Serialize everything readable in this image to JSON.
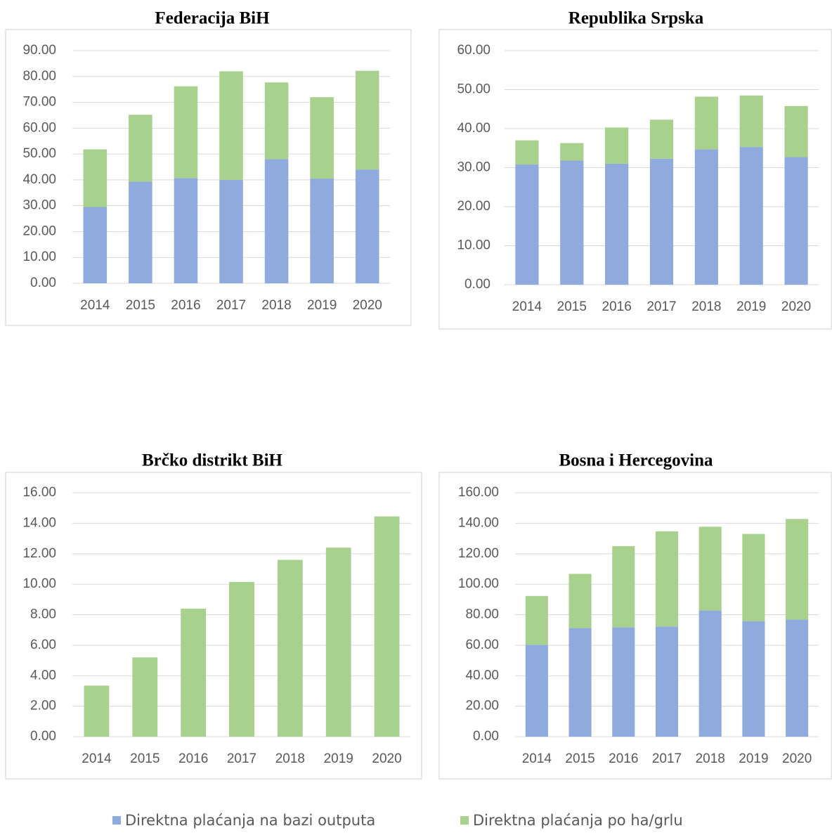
{
  "chart_data": [
    {
      "type": "bar",
      "stacked": true,
      "title": "Federacija BiH",
      "categories": [
        "2014",
        "2015",
        "2016",
        "2017",
        "2018",
        "2019",
        "2020"
      ],
      "series": [
        {
          "color": "#8faadc",
          "values": [
            29.5,
            39.3,
            40.7,
            40.0,
            48.0,
            40.5,
            44.0
          ]
        },
        {
          "color": "#a9d18e",
          "values": [
            22.3,
            25.9,
            35.5,
            42.0,
            29.7,
            31.5,
            38.2
          ]
        }
      ],
      "ylim": [
        0,
        90
      ],
      "yticks": [
        {
          "value": 0,
          "label": "0.00"
        },
        {
          "value": 10,
          "label": "10.00"
        },
        {
          "value": 20,
          "label": "20.00"
        },
        {
          "value": 30,
          "label": "30.00"
        },
        {
          "value": 40,
          "label": "40.00"
        },
        {
          "value": 50,
          "label": "50.00"
        },
        {
          "value": 60,
          "label": "60.00"
        },
        {
          "value": 70,
          "label": "70.00"
        },
        {
          "value": 80,
          "label": "80.00"
        },
        {
          "value": 90,
          "label": "90.00"
        }
      ],
      "grid": true
    },
    {
      "type": "bar",
      "stacked": true,
      "title": "Republika Srpska",
      "categories": [
        "2014",
        "2015",
        "2016",
        "2017",
        "2018",
        "2019",
        "2020"
      ],
      "series": [
        {
          "color": "#8faadc",
          "values": [
            30.8,
            31.8,
            31.0,
            32.3,
            34.7,
            35.3,
            32.7
          ]
        },
        {
          "color": "#a9d18e",
          "values": [
            6.2,
            4.5,
            9.3,
            10.0,
            13.5,
            13.2,
            13.1
          ]
        }
      ],
      "ylim": [
        0,
        60
      ],
      "yticks": [
        {
          "value": 0,
          "label": "0.00"
        },
        {
          "value": 10,
          "label": "10.00"
        },
        {
          "value": 20,
          "label": "20.00"
        },
        {
          "value": 30,
          "label": "30.00"
        },
        {
          "value": 40,
          "label": "40.00"
        },
        {
          "value": 50,
          "label": "50.00"
        },
        {
          "value": 60,
          "label": "60.00"
        }
      ],
      "grid": true
    },
    {
      "type": "bar",
      "stacked": true,
      "title": "Brčko distrikt BiH",
      "categories": [
        "2014",
        "2015",
        "2016",
        "2017",
        "2018",
        "2019",
        "2020"
      ],
      "series": [
        {
          "color": "#a9d18e",
          "values": [
            3.35,
            5.2,
            8.4,
            10.15,
            11.6,
            12.4,
            14.45
          ]
        }
      ],
      "ylim": [
        0,
        16
      ],
      "yticks": [
        {
          "value": 0,
          "label": "0.00"
        },
        {
          "value": 2,
          "label": "2.00"
        },
        {
          "value": 4,
          "label": "4.00"
        },
        {
          "value": 6,
          "label": "6.00"
        },
        {
          "value": 8,
          "label": "8.00"
        },
        {
          "value": 10,
          "label": "10.00"
        },
        {
          "value": 12,
          "label": "12.00"
        },
        {
          "value": 14,
          "label": "14.00"
        },
        {
          "value": 16,
          "label": "16.00"
        }
      ],
      "grid": true
    },
    {
      "type": "bar",
      "stacked": true,
      "title": "Bosna i Hercegovina",
      "categories": [
        "2014",
        "2015",
        "2016",
        "2017",
        "2018",
        "2019",
        "2020"
      ],
      "series": [
        {
          "color": "#8faadc",
          "values": [
            60.3,
            71.2,
            71.8,
            72.3,
            82.8,
            75.8,
            76.8
          ]
        },
        {
          "color": "#a9d18e",
          "values": [
            32.0,
            35.6,
            53.2,
            62.4,
            54.9,
            57.2,
            66.0
          ]
        }
      ],
      "ylim": [
        0,
        160
      ],
      "yticks": [
        {
          "value": 0,
          "label": "0.00"
        },
        {
          "value": 20,
          "label": "20.00"
        },
        {
          "value": 40,
          "label": "40.00"
        },
        {
          "value": 60,
          "label": "60.00"
        },
        {
          "value": 80,
          "label": "80.00"
        },
        {
          "value": 100,
          "label": "100.00"
        },
        {
          "value": 120,
          "label": "120.00"
        },
        {
          "value": 140,
          "label": "140.00"
        },
        {
          "value": 160,
          "label": "160.00"
        }
      ],
      "grid": true
    }
  ],
  "legend": [
    {
      "name": "Direktna plaćanja na bazi outputa",
      "color": "#8faadc"
    },
    {
      "name": "Direktna plaćanja po ha/grlu",
      "color": "#a9d18e"
    }
  ]
}
